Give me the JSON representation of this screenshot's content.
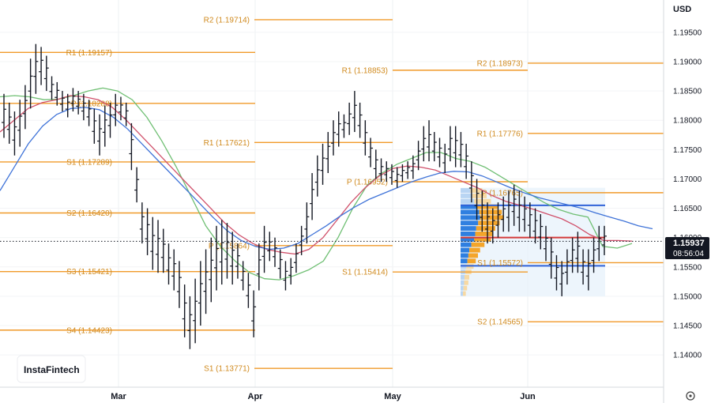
{
  "header": {
    "currency": "USD"
  },
  "brand": {
    "logo_text": "InstaFintech"
  },
  "price_label": {
    "price": "1.15937",
    "time": "08:56:04"
  },
  "colors": {
    "level": "#f09a2a",
    "level_text": "#d08a1e",
    "bar": "#131722",
    "ma_green": "#6fbf73",
    "ma_red": "#d0506a",
    "ma_blue": "#3f73d8",
    "profile_blue": "#2f7fe0",
    "profile_orange": "#f4a52a",
    "poc_red": "#d33a3a",
    "value_area_blue": "#3163d8"
  },
  "chart_data": {
    "type": "bar",
    "title": "",
    "xlabel": "",
    "ylabel": "",
    "ylim": [
      1.1345,
      1.2005
    ],
    "y_ticks": [
      "1.19500",
      "1.19000",
      "1.18500",
      "1.18000",
      "1.17500",
      "1.17000",
      "1.16500",
      "1.16000",
      "1.15500",
      "1.15000",
      "1.14500",
      "1.14000"
    ],
    "x_ticks": [
      "Mar",
      "Apr",
      "May",
      "Jun"
    ],
    "current_price": 1.15937,
    "current_time": "08:56:04",
    "pivot_periods": [
      {
        "levels": [
          {
            "label": "R1 (1.19157)",
            "value": 1.19157
          },
          {
            "label": "P (1.18288)",
            "value": 1.18288
          },
          {
            "label": "S1 (1.17289)",
            "value": 1.17289
          },
          {
            "label": "S2 (1.16420)",
            "value": 1.1642
          },
          {
            "label": "S3 (1.15421)",
            "value": 1.15421
          },
          {
            "label": "S4 (1.14423)",
            "value": 1.14423
          }
        ]
      },
      {
        "levels": [
          {
            "label": "R2 (1.19714)",
            "value": 1.19714
          },
          {
            "label": "R1 (1.17621)",
            "value": 1.17621
          },
          {
            "label": "P (1.15864)",
            "value": 1.15864
          },
          {
            "label": "S1 (1.13771)",
            "value": 1.13771
          }
        ]
      },
      {
        "levels": [
          {
            "label": "R1 (1.18853)",
            "value": 1.18853
          },
          {
            "label": "P (1.16952)",
            "value": 1.16952
          },
          {
            "label": "S1 (1.15414)",
            "value": 1.15414
          }
        ]
      },
      {
        "levels": [
          {
            "label": "R2 (1.18973)",
            "value": 1.18973
          },
          {
            "label": "R1 (1.17776)",
            "value": 1.17776
          },
          {
            "label": "P (1.16765)",
            "value": 1.16765
          },
          {
            "label": "S1 (1.15572)",
            "value": 1.15572
          },
          {
            "label": "S2 (1.14565)",
            "value": 1.14565
          }
        ]
      }
    ],
    "price_bars_hl": [
      [
        1.1845,
        1.177
      ],
      [
        1.183,
        1.176
      ],
      [
        1.1815,
        1.174
      ],
      [
        1.1835,
        1.1755
      ],
      [
        1.186,
        1.1785
      ],
      [
        1.1905,
        1.182
      ],
      [
        1.193,
        1.1845
      ],
      [
        1.1925,
        1.186
      ],
      [
        1.191,
        1.185
      ],
      [
        1.1875,
        1.1835
      ],
      [
        1.1865,
        1.1825
      ],
      [
        1.185,
        1.1815
      ],
      [
        1.1845,
        1.1805
      ],
      [
        1.1855,
        1.1815
      ],
      [
        1.185,
        1.181
      ],
      [
        1.1845,
        1.18
      ],
      [
        1.1835,
        1.179
      ],
      [
        1.182,
        1.176
      ],
      [
        1.181,
        1.174
      ],
      [
        1.1825,
        1.1755
      ],
      [
        1.183,
        1.177
      ],
      [
        1.1845,
        1.179
      ],
      [
        1.184,
        1.18
      ],
      [
        1.183,
        1.179
      ],
      [
        1.1795,
        1.1715
      ],
      [
        1.172,
        1.166
      ],
      [
        1.166,
        1.159
      ],
      [
        1.165,
        1.157
      ],
      [
        1.1635,
        1.1545
      ],
      [
        1.163,
        1.154
      ],
      [
        1.1615,
        1.154
      ],
      [
        1.159,
        1.152
      ],
      [
        1.158,
        1.151
      ],
      [
        1.156,
        1.148
      ],
      [
        1.152,
        1.143
      ],
      [
        1.15,
        1.141
      ],
      [
        1.153,
        1.142
      ],
      [
        1.156,
        1.145
      ],
      [
        1.158,
        1.147
      ],
      [
        1.16,
        1.149
      ],
      [
        1.162,
        1.151
      ],
      [
        1.163,
        1.152
      ],
      [
        1.1625,
        1.153
      ],
      [
        1.161,
        1.152
      ],
      [
        1.159,
        1.153
      ],
      [
        1.156,
        1.151
      ],
      [
        1.154,
        1.148
      ],
      [
        1.151,
        1.143
      ],
      [
        1.159,
        1.151
      ],
      [
        1.162,
        1.154
      ],
      [
        1.161,
        1.156
      ],
      [
        1.16,
        1.155
      ],
      [
        1.158,
        1.153
      ],
      [
        1.156,
        1.151
      ],
      [
        1.1565,
        1.152
      ],
      [
        1.159,
        1.154
      ],
      [
        1.162,
        1.157
      ],
      [
        1.166,
        1.159
      ],
      [
        1.171,
        1.163
      ],
      [
        1.174,
        1.167
      ],
      [
        1.176,
        1.169
      ],
      [
        1.178,
        1.171
      ],
      [
        1.18,
        1.174
      ],
      [
        1.1815,
        1.1755
      ],
      [
        1.181,
        1.177
      ],
      [
        1.183,
        1.1775
      ],
      [
        1.185,
        1.178
      ],
      [
        1.183,
        1.177
      ],
      [
        1.18,
        1.174
      ],
      [
        1.177,
        1.172
      ],
      [
        1.175,
        1.17
      ],
      [
        1.1735,
        1.1695
      ],
      [
        1.173,
        1.1695
      ],
      [
        1.1725,
        1.169
      ],
      [
        1.172,
        1.1685
      ],
      [
        1.1725,
        1.1695
      ],
      [
        1.173,
        1.17
      ],
      [
        1.174,
        1.17
      ],
      [
        1.1765,
        1.1715
      ],
      [
        1.179,
        1.173
      ],
      [
        1.18,
        1.173
      ],
      [
        1.178,
        1.173
      ],
      [
        1.177,
        1.172
      ],
      [
        1.176,
        1.171
      ],
      [
        1.179,
        1.173
      ],
      [
        1.179,
        1.172
      ],
      [
        1.178,
        1.172
      ],
      [
        1.176,
        1.17
      ],
      [
        1.173,
        1.166
      ],
      [
        1.17,
        1.163
      ],
      [
        1.168,
        1.161
      ],
      [
        1.166,
        1.159
      ],
      [
        1.165,
        1.159
      ],
      [
        1.166,
        1.16
      ],
      [
        1.167,
        1.161
      ],
      [
        1.168,
        1.161
      ],
      [
        1.169,
        1.162
      ],
      [
        1.168,
        1.161
      ],
      [
        1.167,
        1.161
      ],
      [
        1.166,
        1.16
      ],
      [
        1.165,
        1.159
      ],
      [
        1.164,
        1.158
      ],
      [
        1.162,
        1.156
      ],
      [
        1.16,
        1.153
      ],
      [
        1.157,
        1.151
      ],
      [
        1.156,
        1.15
      ],
      [
        1.158,
        1.152
      ],
      [
        1.16,
        1.154
      ],
      [
        1.161,
        1.154
      ],
      [
        1.158,
        1.152
      ],
      [
        1.158,
        1.151
      ],
      [
        1.16,
        1.154
      ],
      [
        1.162,
        1.156
      ],
      [
        1.162,
        1.157
      ]
    ],
    "series": [
      {
        "values": [
          1.184,
          1.1842,
          1.184,
          1.1835,
          1.1836,
          1.1842,
          1.185,
          1.1855,
          1.185,
          1.1835,
          1.1805,
          1.1765,
          1.172,
          1.167,
          1.162,
          1.1585,
          1.156,
          1.154,
          1.153,
          1.1528,
          1.1535,
          1.1545,
          1.156,
          1.16,
          1.165,
          1.169,
          1.171,
          1.1725,
          1.1735,
          1.1745,
          1.1745,
          1.1735,
          1.173,
          1.172,
          1.1705,
          1.169,
          1.1675,
          1.166,
          1.1648,
          1.164,
          1.1635,
          1.1585,
          1.1582,
          1.159
        ]
      },
      {
        "values": [
          1.178,
          1.18,
          1.182,
          1.183,
          1.1835,
          1.1842,
          1.184,
          1.1835,
          1.1822,
          1.18,
          1.1775,
          1.175,
          1.1725,
          1.17,
          1.1675,
          1.165,
          1.1625,
          1.1605,
          1.159,
          1.158,
          1.1575,
          1.1572,
          1.158,
          1.16,
          1.163,
          1.166,
          1.1685,
          1.1705,
          1.1718,
          1.1722,
          1.172,
          1.1715,
          1.1705,
          1.1695,
          1.1685,
          1.1672,
          1.1662,
          1.1655,
          1.1648,
          1.164,
          1.1632,
          1.162,
          1.1605,
          1.1595,
          1.1595,
          1.1594
        ]
      },
      {
        "values": [
          1.168,
          1.172,
          1.176,
          1.179,
          1.181,
          1.182,
          1.1822,
          1.1818,
          1.1805,
          1.1785,
          1.176,
          1.1735,
          1.171,
          1.1685,
          1.166,
          1.1635,
          1.1612,
          1.1595,
          1.1585,
          1.158,
          1.1582,
          1.159,
          1.1605,
          1.162,
          1.1637,
          1.1652,
          1.1665,
          1.1675,
          1.1685,
          1.1695,
          1.1703,
          1.171,
          1.1713,
          1.1712,
          1.1705,
          1.1695,
          1.1685,
          1.1676,
          1.1668,
          1.1662,
          1.1656,
          1.165,
          1.1642,
          1.1635,
          1.1628,
          1.162,
          1.1615
        ]
      }
    ],
    "volume_profile": {
      "poc": 1.16,
      "value_area_high": 1.1655,
      "value_area_low": 1.1552,
      "range_high": 1.1685,
      "range_low": 1.15
    }
  }
}
